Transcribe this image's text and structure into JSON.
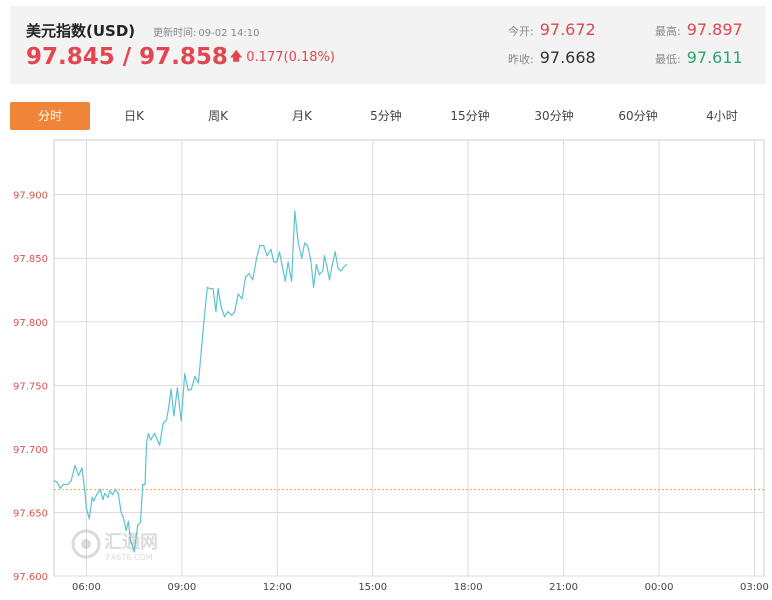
{
  "header": {
    "title": "美元指数(USD)",
    "update_label": "更新时间:",
    "update_time": "09-02 14:10",
    "price": "97.845 / 97.858",
    "change": "0.177(0.18%)",
    "open_label": "今开:",
    "open": "97.672",
    "prev_close_label": "昨收:",
    "prev_close": "97.668",
    "high_label": "最高:",
    "high": "97.897",
    "low_label": "最低:",
    "low": "97.611",
    "colors": {
      "up": "#e0474f",
      "down": "#2aa56f",
      "accent": "#f08439"
    }
  },
  "tabs": [
    "分时",
    "日K",
    "周K",
    "月K",
    "5分钟",
    "15分钟",
    "30分钟",
    "60分钟",
    "4小时"
  ],
  "active_tab": "分时",
  "watermark": {
    "text": "汇通网",
    "subtext": "FX678.COM",
    "icon": "logo-icon"
  },
  "chart_data": {
    "type": "line",
    "title": "",
    "xlabel": "",
    "ylabel": "",
    "ylim": [
      97.6,
      97.943
    ],
    "y_ticks": [
      "97.600",
      "97.650",
      "97.700",
      "97.750",
      "97.800",
      "97.850",
      "97.900"
    ],
    "x_ticks": [
      "06:00",
      "09:00",
      "12:00",
      "15:00",
      "18:00",
      "21:00",
      "00:00",
      "03:00"
    ],
    "xlim_hours": [
      4.98,
      27.3
    ],
    "reference_line": {
      "label": "昨收",
      "value": 97.668,
      "color": "#f0a050",
      "style": "dotted"
    },
    "grid": true,
    "line_color": "#5bc3d0",
    "series": [
      {
        "x": [
          4.98,
          5.07,
          5.18,
          5.27,
          5.41,
          5.52,
          5.64,
          5.75,
          5.86,
          5.95,
          6.0,
          6.09,
          6.18,
          6.23,
          6.32,
          6.41,
          6.43,
          6.52,
          6.57,
          6.68,
          6.73,
          6.82,
          6.91,
          7.0,
          7.09,
          7.15,
          7.25,
          7.32,
          7.39,
          7.43,
          7.5,
          7.61,
          7.7,
          7.77,
          7.84,
          7.89,
          7.95,
          8.02,
          8.14,
          8.23,
          8.3,
          8.41,
          8.52,
          8.59,
          8.66,
          8.75,
          8.86,
          8.98,
          9.09,
          9.2,
          9.3,
          9.41,
          9.52,
          9.61,
          9.68,
          9.8,
          9.89,
          9.98,
          10.07,
          10.14,
          10.23,
          10.34,
          10.45,
          10.57,
          10.66,
          10.77,
          10.89,
          11.0,
          11.11,
          11.23,
          11.34,
          11.45,
          11.57,
          11.68,
          11.8,
          11.89,
          11.98,
          12.07,
          12.16,
          12.25,
          12.34,
          12.45,
          12.55,
          12.66,
          12.77,
          12.86,
          12.95,
          13.05,
          13.14,
          13.23,
          13.32,
          13.43,
          13.48,
          13.55,
          13.64,
          13.73,
          13.82,
          13.91,
          14.0,
          14.09,
          14.18
        ],
        "y": [
          97.675,
          97.674,
          97.669,
          97.672,
          97.672,
          97.675,
          97.687,
          97.679,
          97.685,
          97.666,
          97.653,
          97.645,
          97.662,
          97.659,
          97.664,
          97.667,
          97.668,
          97.66,
          97.665,
          97.662,
          97.667,
          97.664,
          97.668,
          97.665,
          97.65,
          97.647,
          97.636,
          97.643,
          97.627,
          97.625,
          97.619,
          97.64,
          97.642,
          97.672,
          97.672,
          97.705,
          97.712,
          97.707,
          97.712,
          97.707,
          97.703,
          97.72,
          97.723,
          97.733,
          97.747,
          97.726,
          97.748,
          97.722,
          97.759,
          97.746,
          97.747,
          97.757,
          97.752,
          97.777,
          97.797,
          97.827,
          97.826,
          97.826,
          97.808,
          97.826,
          97.812,
          97.804,
          97.808,
          97.805,
          97.808,
          97.822,
          97.818,
          97.835,
          97.838,
          97.833,
          97.849,
          97.86,
          97.86,
          97.852,
          97.857,
          97.847,
          97.847,
          97.855,
          97.843,
          97.832,
          97.847,
          97.832,
          97.887,
          97.862,
          97.85,
          97.862,
          97.86,
          97.849,
          97.827,
          97.845,
          97.837,
          97.84,
          97.852,
          97.845,
          97.833,
          97.845,
          97.855,
          97.842,
          97.84,
          97.843,
          97.845
        ]
      }
    ]
  }
}
